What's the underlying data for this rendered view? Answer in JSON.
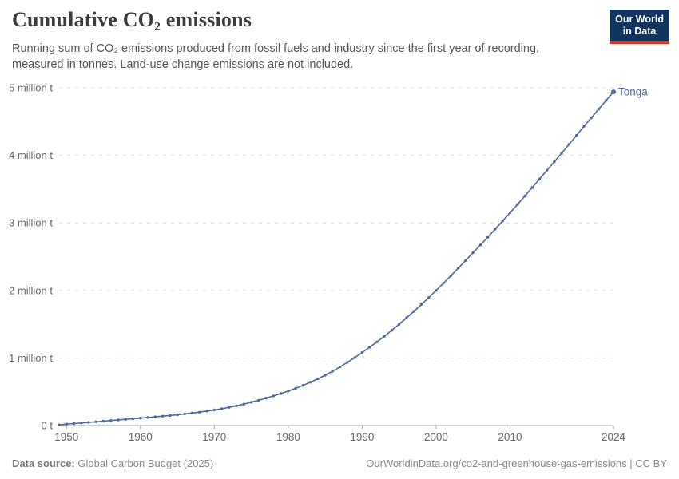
{
  "header": {
    "title": "Cumulative CO₂ emissions",
    "subtitle": "Running sum of CO₂ emissions produced from fossil fuels and industry since the first year of recording, measured in tonnes. Land-use change emissions are not included.",
    "logo": {
      "line1": "Our World",
      "line2": "in Data"
    }
  },
  "footer": {
    "datasource_label": "Data source:",
    "datasource_value": "Global Carbon Budget (2025)",
    "link": "OurWorldinData.org/co2-and-greenhouse-gas-emissions | CC BY"
  },
  "colors": {
    "line": "#4C6A9C",
    "gridline": "#dcdcdc",
    "axis": "#a0a0a0",
    "tick_text": "#666666",
    "logo_bg": "#12355f",
    "logo_red": "#dc3627"
  },
  "chart_data": {
    "type": "line",
    "title": "Cumulative CO₂ emissions",
    "unit": "t",
    "grid": "horizontal-dashed",
    "legend_position": "end-of-line-label",
    "xlim": [
      1949,
      2024
    ],
    "ylim": [
      0,
      5000000
    ],
    "xticks": [
      1950,
      1960,
      1970,
      1980,
      1990,
      2000,
      2010,
      2024
    ],
    "yticks": [
      {
        "value": 0,
        "label": "0 t"
      },
      {
        "value": 1000000,
        "label": "1 million t"
      },
      {
        "value": 2000000,
        "label": "2 million t"
      },
      {
        "value": 3000000,
        "label": "3 million t"
      },
      {
        "value": 4000000,
        "label": "4 million t"
      },
      {
        "value": 5000000,
        "label": "5 million t"
      }
    ],
    "x": [
      1949,
      1950,
      1951,
      1952,
      1953,
      1954,
      1955,
      1956,
      1957,
      1958,
      1959,
      1960,
      1961,
      1962,
      1963,
      1964,
      1965,
      1966,
      1967,
      1968,
      1969,
      1970,
      1971,
      1972,
      1973,
      1974,
      1975,
      1976,
      1977,
      1978,
      1979,
      1980,
      1981,
      1982,
      1983,
      1984,
      1985,
      1986,
      1987,
      1988,
      1989,
      1990,
      1991,
      1992,
      1993,
      1994,
      1995,
      1996,
      1997,
      1998,
      1999,
      2000,
      2001,
      2002,
      2003,
      2004,
      2005,
      2006,
      2007,
      2008,
      2009,
      2010,
      2011,
      2012,
      2013,
      2014,
      2015,
      2016,
      2017,
      2018,
      2019,
      2020,
      2021,
      2022,
      2023,
      2024
    ],
    "series": [
      {
        "name": "Tonga",
        "color": "#4C6A9C",
        "values": [
          10000,
          22000,
          30000,
          38000,
          47000,
          56000,
          65000,
          74000,
          83000,
          92000,
          101000,
          110000,
          119000,
          129000,
          139000,
          149000,
          160000,
          172000,
          185000,
          199000,
          214000,
          230000,
          248000,
          269000,
          292000,
          317000,
          345000,
          374000,
          405000,
          438000,
          473000,
          510000,
          551000,
          595000,
          642000,
          692000,
          745000,
          805000,
          868000,
          935000,
          1006000,
          1080000,
          1158000,
          1238000,
          1322000,
          1409000,
          1500000,
          1594000,
          1691000,
          1791000,
          1894000,
          2000000,
          2108000,
          2218000,
          2330000,
          2444000,
          2560000,
          2674000,
          2790000,
          2908000,
          3028000,
          3150000,
          3272000,
          3396000,
          3522000,
          3650000,
          3780000,
          3906000,
          4034000,
          4164000,
          4296000,
          4430000,
          4556000,
          4684000,
          4812000,
          4940000
        ]
      }
    ]
  }
}
